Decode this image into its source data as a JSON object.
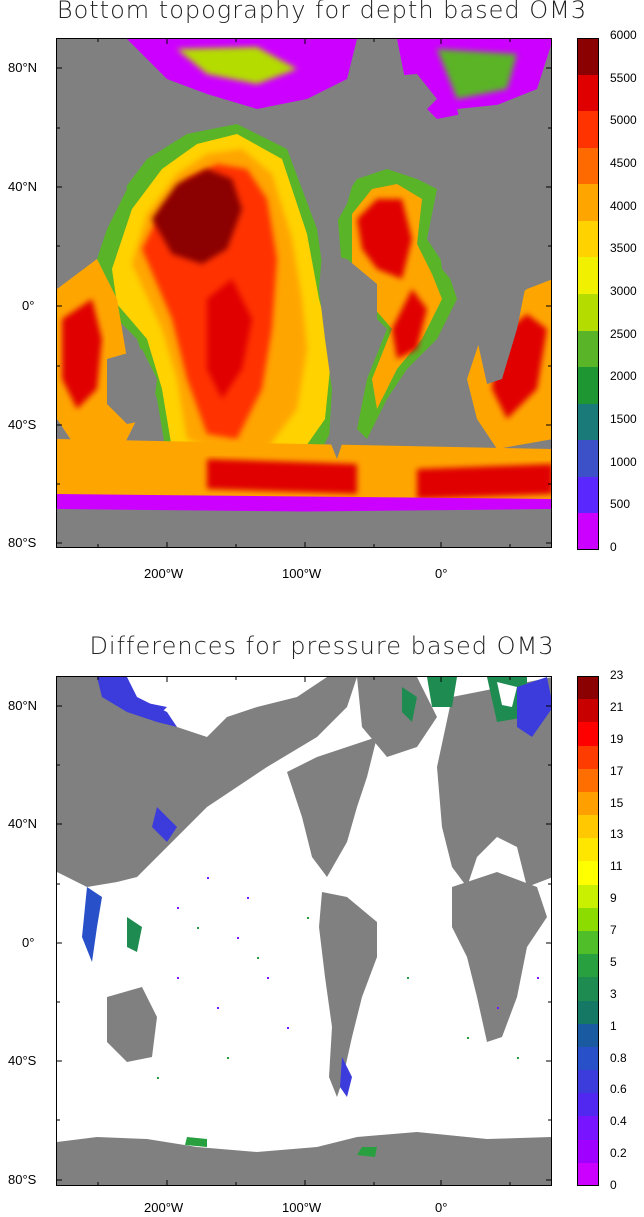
{
  "panels": [
    {
      "title": "Bottom topography for depth based OM3",
      "lat_labels": [
        "80°N",
        "40°N",
        "0°",
        "40°S",
        "80°S"
      ],
      "lon_labels": [
        "200°W",
        "100°W",
        "0°"
      ],
      "land_color": "#808080",
      "colorbar": {
        "labels": [
          "6000",
          "5500",
          "5000",
          "4500",
          "4000",
          "3500",
          "3000",
          "2500",
          "2000",
          "1500",
          "1000",
          "500",
          "0"
        ],
        "colors": [
          "#8b0000",
          "#e00000",
          "#ff3300",
          "#ff6a00",
          "#ffa500",
          "#ffd200",
          "#f0f000",
          "#b4dc00",
          "#5ab428",
          "#1e9632",
          "#1a7a7a",
          "#3c50c8",
          "#5a28ff",
          "#cc00ff"
        ]
      }
    },
    {
      "title": "Differences for pressure based OM3",
      "lat_labels": [
        "80°N",
        "40°N",
        "0°",
        "40°S",
        "80°S"
      ],
      "lon_labels": [
        "200°W",
        "100°W",
        "0°"
      ],
      "land_color": "#808080",
      "colorbar": {
        "labels": [
          "23",
          "21",
          "19",
          "17",
          "15",
          "13",
          "11",
          "9",
          "7",
          "5",
          "3",
          "1",
          "0.8",
          "0.6",
          "0.4",
          "0.2",
          "0"
        ],
        "colors": [
          "#8b0000",
          "#c80000",
          "#ff0000",
          "#ff3c00",
          "#ff6e00",
          "#ffa000",
          "#ffc800",
          "#ffe600",
          "#ffff00",
          "#c8f000",
          "#8cdc00",
          "#50be28",
          "#28a040",
          "#1e8c50",
          "#147864",
          "#1a5aa0",
          "#2850c8",
          "#3c3cdc",
          "#5028f0",
          "#7814ff",
          "#a000ff",
          "#cc00ff"
        ]
      }
    }
  ]
}
